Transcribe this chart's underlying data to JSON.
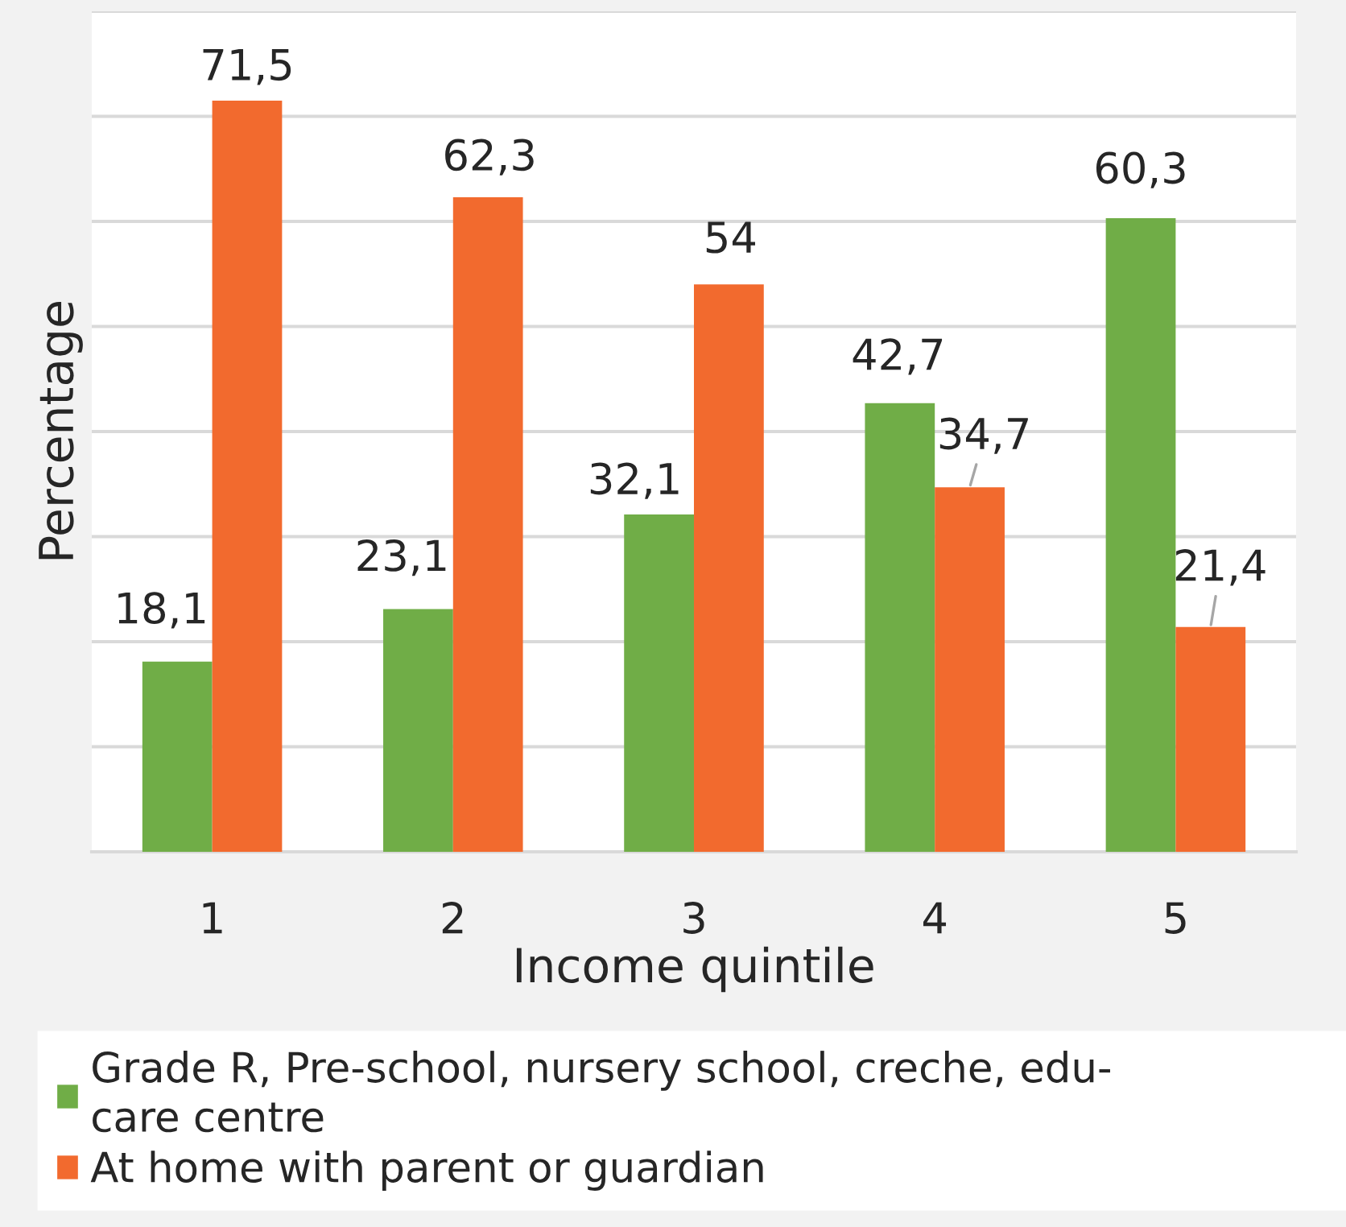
{
  "chart_data": {
    "type": "bar",
    "xlabel": "Income quintile",
    "ylabel": "Percentage",
    "categories": [
      "1",
      "2",
      "3",
      "4",
      "5"
    ],
    "series": [
      {
        "name": "Grade R, Pre-school, nursery school, creche, edu-\ncare centre",
        "color": "#70ad47",
        "values": [
          18.1,
          23.1,
          32.1,
          42.7,
          60.3
        ],
        "value_labels": [
          "18,1",
          "23,1",
          "32,1",
          "42,7",
          "60,3"
        ]
      },
      {
        "name": "At home with parent or guardian",
        "color": "#f26a2e",
        "values": [
          71.5,
          62.3,
          54,
          34.7,
          21.4
        ],
        "value_labels": [
          "71,5",
          "62,3",
          "54",
          "34,7",
          "21,4"
        ]
      }
    ],
    "ylim": [
      0,
      80
    ],
    "yticks": [
      {
        "value": 0,
        "label": null
      },
      {
        "value": 10,
        "label": null
      },
      {
        "value": 20,
        "label": null
      },
      {
        "value": 30,
        "label": null
      },
      {
        "value": 40,
        "label": null
      },
      {
        "value": 50,
        "label": null
      },
      {
        "value": 60,
        "label": null
      },
      {
        "value": 70,
        "label": null
      },
      {
        "value": 80,
        "label": null
      }
    ],
    "grid": "y",
    "legend": "bottom",
    "tick_labels": "x"
  }
}
